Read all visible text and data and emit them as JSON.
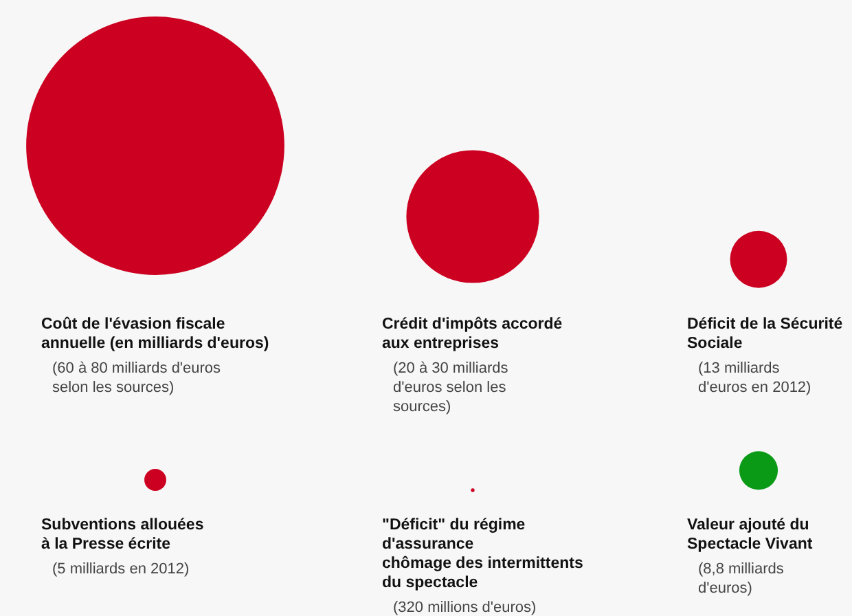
{
  "chart_data": {
    "type": "other",
    "categories": [
      "Coût de l'évasion fiscale\nannuelle (en milliards d'euros)",
      "Crédit d'impôts accordé\naux entreprises",
      "Déficit de la Sécurité\nSociale",
      "Subventions allouées\nà la Presse écrite",
      "\"Déficit\" du régime\nd'assurance\nchômage des intermittents\ndu spectacle",
      "Valeur ajouté du\nSpectacle Vivant"
    ],
    "values": [
      null,
      null,
      13,
      5,
      null,
      8.8
    ],
    "colors": [
      "#cc0020",
      "#cc0020",
      "#cc0020",
      "#cc0020",
      "#cc0020",
      "#0a9a16"
    ],
    "value_labels": [
      "(60 à 80 milliards d'euros\nselon les sources)",
      "(20 à 30 milliards\nd'euros selon les\nsources)",
      "(13 milliards\nd'euros en 2012)",
      "(5 milliards en 2012)",
      "(320 millions d'euros)",
      "(8,8 milliards\nd'euros)"
    ]
  }
}
